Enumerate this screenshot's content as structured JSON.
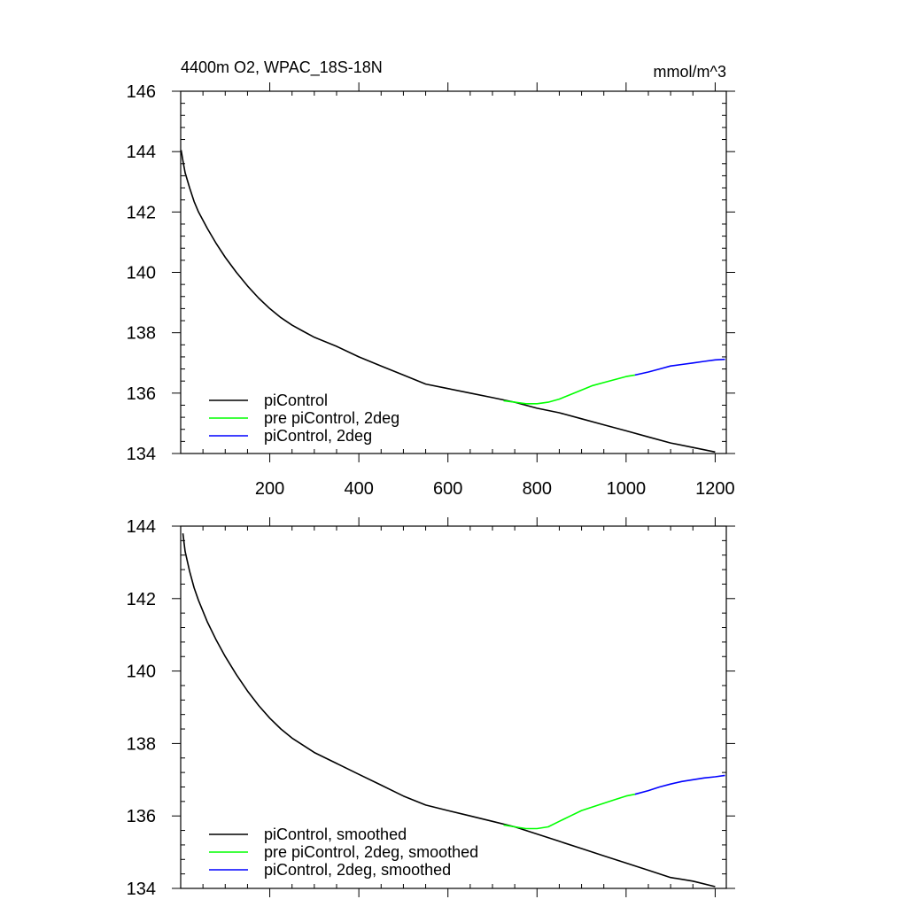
{
  "chart_data": [
    {
      "type": "line",
      "title": "4400m O2, WPAC_18S-18N",
      "units_label": "mmol/m^3",
      "xlim": [
        0,
        1225
      ],
      "ylim": [
        134,
        146
      ],
      "x_ticks": [
        200,
        400,
        600,
        800,
        1000,
        1200
      ],
      "x_tick_labels": [
        "200",
        "400",
        "600",
        "800",
        "1000",
        "1200"
      ],
      "y_ticks": [
        134,
        136,
        138,
        140,
        142,
        144,
        146
      ],
      "y_tick_labels": [
        "134",
        "136",
        "138",
        "140",
        "142",
        "144",
        "146"
      ],
      "grid": false,
      "legend_position": "bottom-left",
      "series": [
        {
          "name": "piControl",
          "color": "#000000",
          "x": [
            1,
            5,
            10,
            20,
            30,
            40,
            60,
            80,
            100,
            125,
            150,
            175,
            200,
            225,
            250,
            275,
            300,
            350,
            400,
            450,
            500,
            550,
            600,
            650,
            700,
            750,
            800,
            850,
            900,
            950,
            1000,
            1050,
            1100,
            1150,
            1200
          ],
          "y": [
            144.05,
            143.7,
            143.3,
            142.8,
            142.35,
            142.0,
            141.45,
            140.95,
            140.5,
            140.0,
            139.55,
            139.15,
            138.8,
            138.5,
            138.25,
            138.05,
            137.85,
            137.55,
            137.2,
            136.9,
            136.6,
            136.3,
            136.15,
            136.0,
            135.85,
            135.7,
            135.5,
            135.35,
            135.15,
            134.95,
            134.75,
            134.55,
            134.35,
            134.2,
            134.05
          ]
        },
        {
          "name": "pre piControl, 2deg",
          "color": "#00ff00",
          "x": [
            725,
            750,
            775,
            800,
            825,
            850,
            875,
            900,
            925,
            950,
            975,
            1000,
            1020
          ],
          "y": [
            135.75,
            135.7,
            135.65,
            135.65,
            135.7,
            135.8,
            135.95,
            136.1,
            136.25,
            136.35,
            136.45,
            136.55,
            136.6
          ]
        },
        {
          "name": "piControl, 2deg",
          "color": "#0000ff",
          "x": [
            1020,
            1050,
            1075,
            1100,
            1125,
            1150,
            1175,
            1200,
            1222
          ],
          "y": [
            136.6,
            136.7,
            136.8,
            136.9,
            136.95,
            137.0,
            137.05,
            137.1,
            137.12
          ]
        }
      ]
    },
    {
      "type": "line",
      "xlim": [
        0,
        1225
      ],
      "ylim": [
        134,
        144
      ],
      "x_ticks": [
        200,
        400,
        600,
        800,
        1000,
        1200
      ],
      "y_ticks": [
        134,
        136,
        138,
        140,
        142,
        144
      ],
      "y_tick_labels": [
        "134",
        "136",
        "138",
        "140",
        "142",
        "144"
      ],
      "grid": false,
      "legend_position": "bottom-left",
      "series": [
        {
          "name": "piControl, smoothed",
          "color": "#000000",
          "x": [
            5,
            10,
            20,
            30,
            40,
            60,
            80,
            100,
            125,
            150,
            175,
            200,
            225,
            250,
            275,
            300,
            350,
            400,
            450,
            500,
            550,
            600,
            650,
            700,
            750,
            800,
            850,
            900,
            950,
            1000,
            1050,
            1100,
            1150,
            1200
          ],
          "y": [
            143.8,
            143.3,
            142.75,
            142.3,
            141.95,
            141.35,
            140.85,
            140.4,
            139.9,
            139.45,
            139.05,
            138.7,
            138.4,
            138.15,
            137.95,
            137.75,
            137.45,
            137.15,
            136.85,
            136.55,
            136.3,
            136.15,
            136.0,
            135.85,
            135.7,
            135.5,
            135.3,
            135.1,
            134.9,
            134.7,
            134.5,
            134.3,
            134.2,
            134.05
          ]
        },
        {
          "name": "pre piControl, 2deg, smoothed",
          "color": "#00ff00",
          "x": [
            725,
            750,
            775,
            800,
            825,
            850,
            875,
            900,
            925,
            950,
            975,
            1000,
            1020
          ],
          "y": [
            135.75,
            135.7,
            135.65,
            135.65,
            135.7,
            135.85,
            136.0,
            136.15,
            136.25,
            136.35,
            136.45,
            136.55,
            136.6
          ]
        },
        {
          "name": "piControl, 2deg, smoothed",
          "color": "#0000ff",
          "x": [
            1020,
            1050,
            1075,
            1100,
            1125,
            1150,
            1175,
            1200,
            1222
          ],
          "y": [
            136.6,
            136.7,
            136.8,
            136.88,
            136.95,
            137.0,
            137.05,
            137.08,
            137.12
          ]
        }
      ]
    }
  ]
}
